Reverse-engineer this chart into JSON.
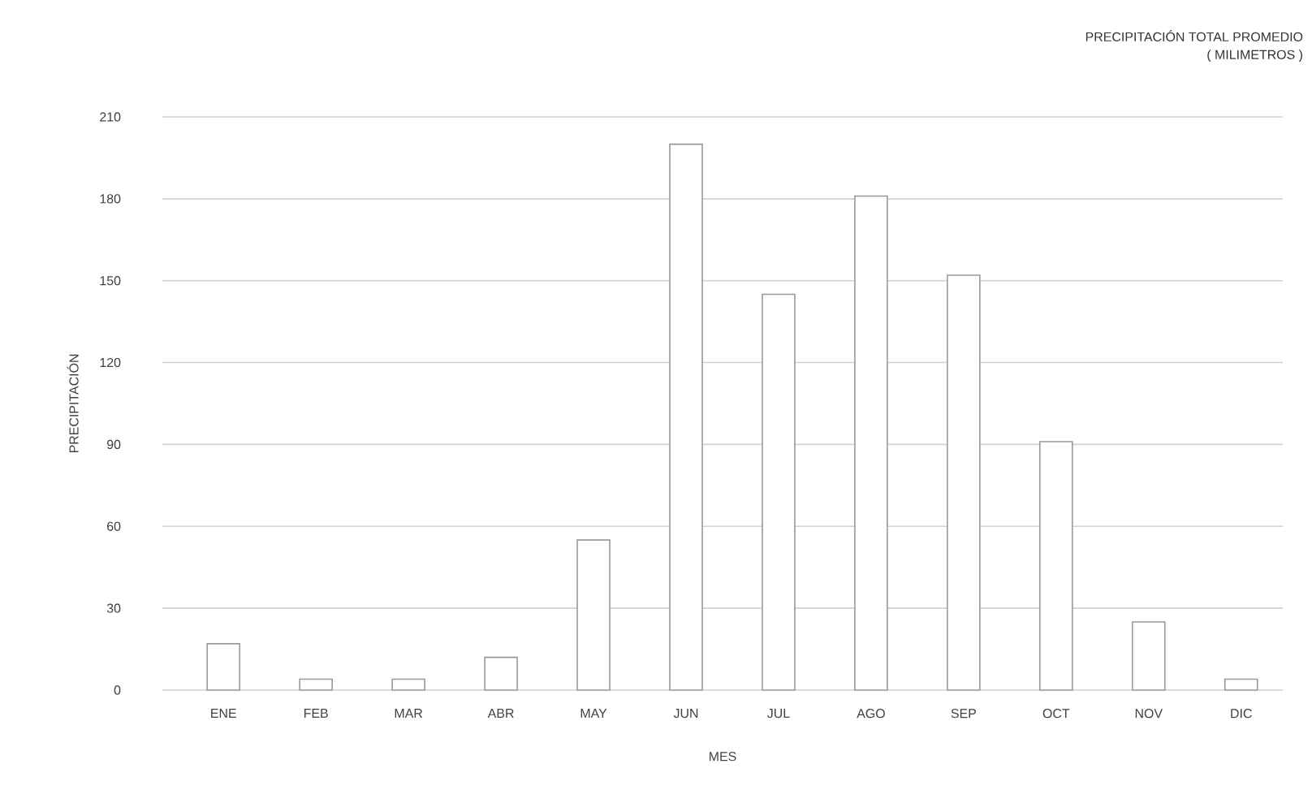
{
  "chart_data": {
    "type": "bar",
    "title": "PRECIPITACIÓN TOTAL PROMEDIO",
    "subtitle": "( MILIMETROS )",
    "xlabel": "MES",
    "ylabel": "PRECIPITACIÓN",
    "categories": [
      "ENE",
      "FEB",
      "MAR",
      "ABR",
      "MAY",
      "JUN",
      "JUL",
      "AGO",
      "SEP",
      "OCT",
      "NOV",
      "DIC"
    ],
    "values": [
      17,
      4,
      4,
      12,
      55,
      200,
      145,
      181,
      152,
      91,
      25,
      4
    ],
    "color": "#ffffff",
    "ylim": [
      0,
      210
    ],
    "yticks": [
      0,
      30,
      60,
      90,
      120,
      150,
      180,
      210
    ],
    "grid": "y"
  }
}
